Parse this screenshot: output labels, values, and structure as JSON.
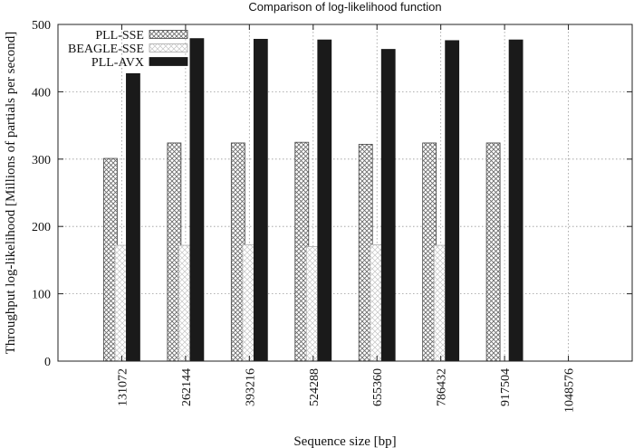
{
  "chart_data": {
    "type": "bar",
    "title": "Comparison of log-likelihood function",
    "xlabel": "Sequence size [bp]",
    "ylabel": "Throughput log-likelihood [Millions of partials per second]",
    "categories": [
      "131072",
      "262144",
      "393216",
      "524288",
      "655360",
      "786432",
      "917504",
      "1048576"
    ],
    "series": [
      {
        "name": "PLL-SSE",
        "pattern": "dense-crosshatch",
        "values": [
          301,
          324,
          324,
          325,
          322,
          324,
          324,
          null
        ]
      },
      {
        "name": "BEAGLE-SSE",
        "pattern": "light-crosshatch",
        "values": [
          172,
          172,
          173,
          170,
          173,
          172,
          null,
          null
        ]
      },
      {
        "name": "PLL-AVX",
        "pattern": "solid",
        "color": "#1a1a1a",
        "values": [
          427,
          479,
          478,
          477,
          463,
          476,
          477,
          null
        ]
      }
    ],
    "yticks": [
      0,
      100,
      200,
      300,
      400,
      500
    ],
    "ylim": [
      0,
      500
    ],
    "grid": true,
    "legend_position": "top-left"
  }
}
